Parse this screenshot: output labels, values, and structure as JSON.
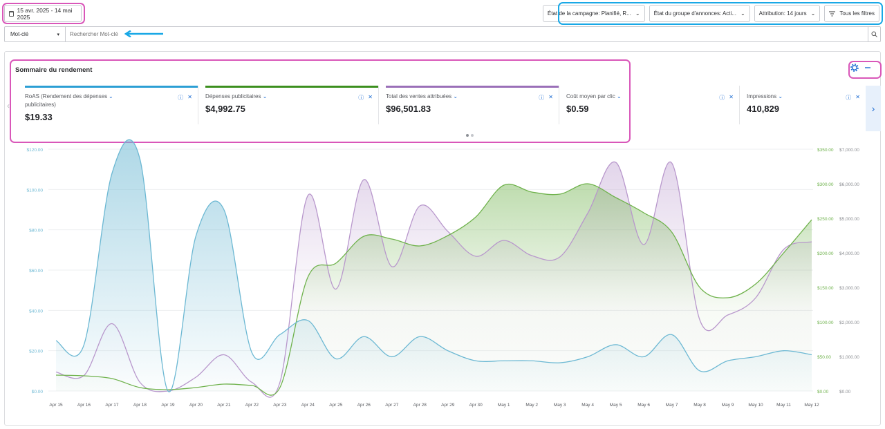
{
  "topbar": {
    "date_range": "15 avr. 2025 - 14 mai 2025",
    "filters": [
      {
        "label": "État de la campagne: Planifié, R..."
      },
      {
        "label": "État du groupe d'annonces: Acti..."
      },
      {
        "label": "Attribution: 14 jours"
      }
    ],
    "all_filters": "Tous les filtres"
  },
  "search": {
    "type_label": "Mot-clé",
    "placeholder": "Rechercher Mot-clé"
  },
  "panel": {
    "title": "Sommaire du rendement"
  },
  "metrics": [
    {
      "label": "RoAS (Rendement des dépenses publicitaires)",
      "value": "$19.33",
      "color": "#2b9fd4"
    },
    {
      "label": "Dépenses publicitaires",
      "value": "$4,992.75",
      "color": "#3b8f1e"
    },
    {
      "label": "Total des ventes attribuées",
      "value": "$96,501.83",
      "color": "#9a6fb8"
    },
    {
      "label": "Coût moyen par clic",
      "value": "$0.59",
      "color": ""
    },
    {
      "label": "Impressions",
      "value": "410,829",
      "color": ""
    }
  ],
  "colors": {
    "roas": "#6cb8d3",
    "spend": "#6fb24c",
    "sales": "#b897cc",
    "highlight_pink": "#d957b9",
    "highlight_blue": "#19a8e6"
  },
  "chart_data": {
    "type": "area",
    "categories": [
      "Apr 15",
      "Apr 16",
      "Apr 17",
      "Apr 18",
      "Apr 19",
      "Apr 20",
      "Apr 21",
      "Apr 22",
      "Apr 23",
      "Apr 24",
      "Apr 25",
      "Apr 26",
      "Apr 27",
      "Apr 28",
      "Apr 29",
      "Apr 30",
      "May 1",
      "May 2",
      "May 3",
      "May 4",
      "May 5",
      "May 6",
      "May 7",
      "May 8",
      "May 9",
      "May 10",
      "May 11",
      "May 12"
    ],
    "left_axis": {
      "ticks": [
        "$0.00",
        "$20.00",
        "$40.00",
        "$60.00",
        "$80.00",
        "$100.00",
        "$120.00"
      ],
      "ylim": [
        0,
        120
      ]
    },
    "mid_axis": {
      "ticks": [
        "$0.00",
        "$50.00",
        "$100.00",
        "$150.00",
        "$200.00",
        "$250.00",
        "$300.00",
        "$350.00"
      ],
      "ylim": [
        0,
        350
      ]
    },
    "right_axis": {
      "ticks": [
        "$0.00",
        "$1,000.00",
        "$2,000.00",
        "$3,000.00",
        "$4,000.00",
        "$5,000.00",
        "$6,000.00",
        "$7,000.00"
      ],
      "ylim": [
        0,
        7000
      ]
    },
    "series": [
      {
        "axis": "left",
        "values": [
          25,
          23,
          108,
          115,
          0,
          77,
          90,
          19,
          28,
          35,
          16,
          27,
          17,
          27,
          20,
          15,
          15,
          15,
          14,
          17,
          23,
          17,
          28,
          10,
          15,
          17,
          20,
          18
        ]
      },
      {
        "axis": "mid",
        "values": [
          23,
          22,
          18,
          5,
          2,
          5,
          10,
          8,
          5,
          165,
          185,
          224,
          220,
          210,
          225,
          252,
          298,
          288,
          285,
          300,
          280,
          258,
          230,
          150,
          135,
          155,
          200,
          248
        ]
      },
      {
        "axis": "right",
        "values": [
          550,
          450,
          1950,
          250,
          0,
          400,
          1050,
          250,
          250,
          5660,
          2950,
          6120,
          3600,
          5360,
          4620,
          3900,
          4360,
          3920,
          3880,
          5150,
          6620,
          4240,
          6600,
          2060,
          2200,
          2700,
          4100,
          4320
        ]
      }
    ]
  }
}
